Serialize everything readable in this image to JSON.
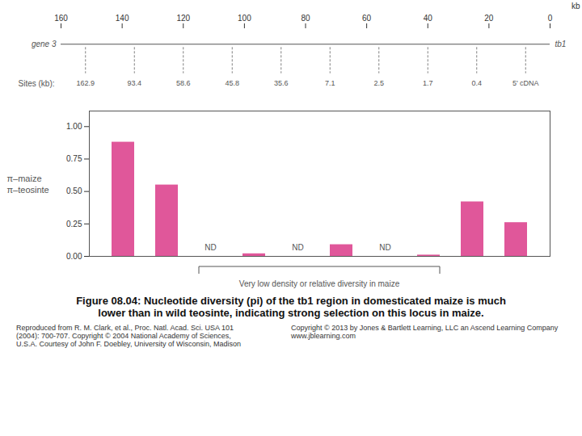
{
  "chart_data": [
    {
      "type": "gene map",
      "xlabel": "kb",
      "xlim": [
        160,
        0
      ],
      "xticks": [
        160,
        140,
        120,
        100,
        80,
        60,
        40,
        20,
        0
      ],
      "categories": [
        "162.9",
        "93.4",
        "58.6",
        "45.8",
        "35.6",
        "7.1",
        "2.5",
        "1.7",
        "0.4",
        "5' cDNA"
      ],
      "annotations": [
        "gene 3",
        "tb1",
        "Sites (kb):"
      ]
    },
    {
      "type": "bar",
      "title": "Figure 08.04: Nucleotide diversity (pi) of the tb1 region in domesticated maize is much\nlower than in wild teosinte, indicating strong selection on this locus in maize.",
      "ylabel": "π–maize\nπ–teosinte",
      "categories": [
        null,
        null,
        null,
        null,
        null,
        null,
        null,
        null,
        null,
        null
      ],
      "values": [
        0.88,
        0.55,
        null,
        0.02,
        null,
        0.09,
        null,
        0.01,
        0.42,
        0.26
      ],
      "value_labels": [
        null,
        null,
        "ND",
        null,
        "ND",
        null,
        "ND",
        null,
        null,
        null
      ],
      "color": "#e0579a",
      "ylim": [
        0,
        1.12
      ],
      "yticks": [
        {
          "value": 0,
          "label": "0.00"
        },
        0.25,
        {
          "value": 0.5,
          "label": "0.50"
        },
        0.75,
        {
          "value": 1,
          "label": "1.00"
        }
      ],
      "tick_labels": "y",
      "annotations": [
        "Very low density or relative diversity in maize"
      ],
      "caption": [
        "Reproduced from R. M. Clark, et al., Proc. Natl. Acad. Sci. USA 101\n(2004): 700-707. Copyright © 2004 National Academy of Sciences,\nU.S.A. Courtesy of John F. Doebley, University of Wisconsin, Madison",
        "Copyright © 2013 by Jones & Bartlett Learning, LLC an Ascend Learning Company\nwww.jblearning.com"
      ]
    }
  ]
}
